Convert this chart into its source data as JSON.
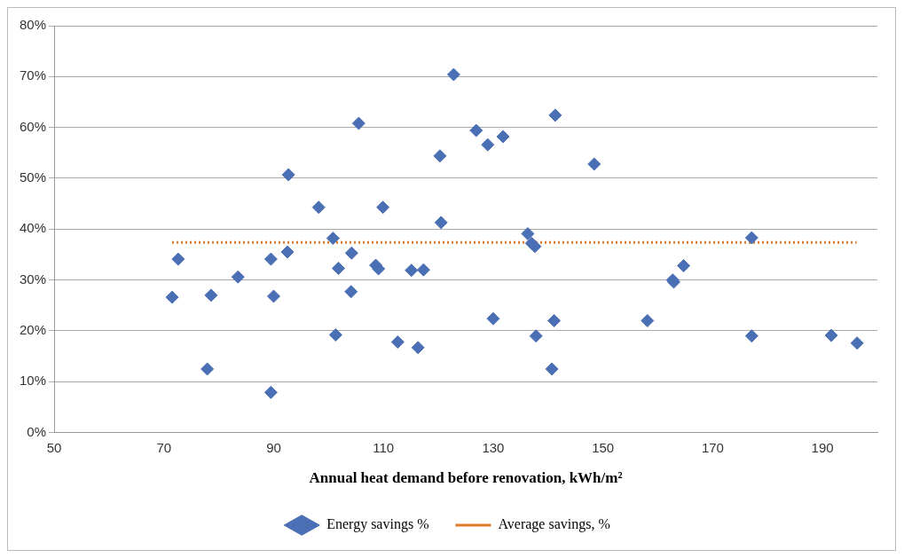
{
  "chart_data": {
    "type": "scatter",
    "xlabel": "Annual heat demand before renovation, kWh/m²",
    "xlim": [
      50,
      200
    ],
    "xticks": [
      50,
      70,
      90,
      110,
      130,
      150,
      170,
      190
    ],
    "ylim": [
      0,
      80
    ],
    "yticks": [
      {
        "value": 0,
        "label": "0%"
      },
      {
        "value": 10,
        "label": "10%"
      },
      {
        "value": 20,
        "label": "20%"
      },
      {
        "value": 30,
        "label": "30%"
      },
      {
        "value": 40,
        "label": "40%"
      },
      {
        "value": 50,
        "label": "50%"
      },
      {
        "value": 60,
        "label": "60%"
      },
      {
        "value": 70,
        "label": "70%"
      },
      {
        "value": 80,
        "label": "80%"
      }
    ],
    "grid": "y",
    "legend": "bottom",
    "marker": "diamond",
    "series": [
      {
        "name": "Energy savings %",
        "color": "#4a6fb5",
        "x": [
          71.5,
          72.6,
          77.9,
          78.6,
          83.5,
          89.5,
          89.5,
          90.0,
          92.5,
          92.7,
          98.2,
          100.8,
          101.8,
          101.3,
          104.2,
          104.1,
          105.5,
          108.6,
          109.1,
          109.9,
          112.6,
          115.1,
          116.3,
          117.3,
          120.3,
          120.5,
          122.8,
          126.9,
          129.0,
          131.8,
          141.3,
          148.4,
          136.3,
          137.0,
          137.6,
          130.0,
          137.8,
          141.1,
          140.7,
          158.1,
          162.7,
          162.9,
          164.7,
          177.1,
          177.1,
          191.6,
          196.3
        ],
        "values": [
          26.6,
          34.1,
          12.5,
          27.0,
          30.6,
          34.1,
          7.9,
          26.8,
          35.5,
          50.7,
          44.3,
          38.2,
          32.3,
          19.2,
          35.3,
          27.7,
          60.8,
          32.9,
          32.2,
          44.3,
          17.8,
          31.9,
          16.7,
          32.0,
          54.4,
          41.3,
          70.4,
          59.4,
          56.6,
          58.2,
          62.4,
          52.8,
          39.1,
          37.2,
          36.6,
          22.4,
          19.0,
          22.0,
          12.5,
          22.0,
          30.0,
          29.6,
          32.8,
          38.3,
          19.0,
          19.1,
          17.6
        ]
      },
      {
        "name": "Average savings, %",
        "type": "line",
        "color": "#e07b2a",
        "line_style": "dotted",
        "marker": "none",
        "x": [
          71.5,
          196.2
        ],
        "values": [
          37.4,
          37.4
        ]
      }
    ]
  }
}
